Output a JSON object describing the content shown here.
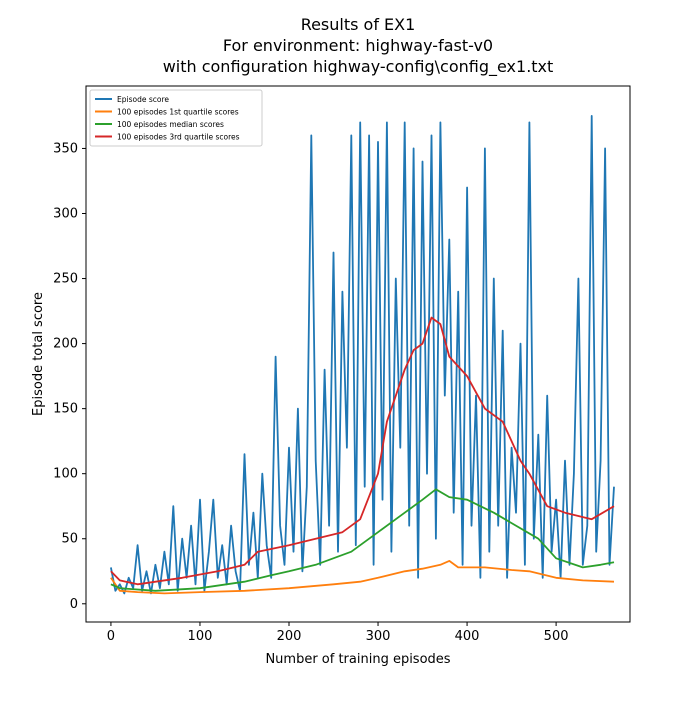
{
  "chart_data": {
    "type": "line",
    "title": [
      "Results of EX1",
      "For environment: highway-fast-v0",
      "with configuration highway-config\\config_ex1.txt"
    ],
    "x_label": "Number of training episodes",
    "y_label": "Episode total score",
    "xlim": [
      -28,
      583
    ],
    "ylim": [
      -14,
      398
    ],
    "xticks": [
      0,
      100,
      200,
      300,
      400,
      500
    ],
    "yticks": [
      0,
      50,
      100,
      150,
      200,
      250,
      300,
      350
    ],
    "grid": false,
    "legend": "upper left",
    "series": [
      {
        "name": "Episode score",
        "color": "#1f77b4",
        "x": [
          0,
          5,
          10,
          15,
          20,
          25,
          30,
          35,
          40,
          45,
          50,
          55,
          60,
          65,
          70,
          75,
          80,
          85,
          90,
          95,
          100,
          105,
          110,
          115,
          120,
          125,
          130,
          135,
          140,
          145,
          150,
          155,
          160,
          165,
          170,
          175,
          180,
          185,
          190,
          195,
          200,
          205,
          210,
          215,
          220,
          225,
          230,
          235,
          240,
          245,
          250,
          255,
          260,
          265,
          270,
          275,
          280,
          285,
          290,
          295,
          300,
          305,
          310,
          315,
          320,
          325,
          330,
          335,
          340,
          345,
          350,
          355,
          360,
          365,
          370,
          375,
          380,
          385,
          390,
          395,
          400,
          405,
          410,
          415,
          420,
          425,
          430,
          435,
          440,
          445,
          450,
          455,
          460,
          465,
          470,
          475,
          480,
          485,
          490,
          495,
          500,
          505,
          510,
          515,
          520,
          525,
          530,
          535,
          540,
          545,
          550,
          555,
          560,
          565
        ],
        "values": [
          28,
          10,
          15,
          8,
          20,
          12,
          45,
          10,
          25,
          8,
          30,
          12,
          40,
          15,
          75,
          10,
          50,
          20,
          60,
          15,
          80,
          10,
          40,
          80,
          20,
          45,
          15,
          60,
          25,
          10,
          115,
          30,
          70,
          20,
          100,
          45,
          20,
          190,
          60,
          30,
          120,
          40,
          150,
          25,
          90,
          360,
          110,
          30,
          180,
          60,
          270,
          40,
          240,
          120,
          360,
          45,
          370,
          90,
          360,
          30,
          355,
          80,
          370,
          40,
          250,
          120,
          370,
          60,
          350,
          20,
          340,
          100,
          360,
          50,
          370,
          160,
          280,
          70,
          240,
          30,
          320,
          60,
          160,
          20,
          350,
          40,
          250,
          60,
          210,
          20,
          120,
          70,
          200,
          30,
          370,
          50,
          130,
          20,
          160,
          40,
          80,
          20,
          110,
          30,
          100,
          250,
          30,
          60,
          375,
          40,
          110,
          350,
          30,
          90
        ]
      },
      {
        "name": "100 episodes 1st quartile scores",
        "color": "#ff7f0e",
        "x": [
          0,
          10,
          30,
          60,
          100,
          150,
          200,
          250,
          280,
          300,
          330,
          350,
          370,
          380,
          390,
          420,
          450,
          470,
          500,
          530,
          565
        ],
        "values": [
          20,
          10,
          9,
          8,
          9,
          10,
          12,
          15,
          17,
          20,
          25,
          27,
          30,
          33,
          28,
          28,
          26,
          25,
          20,
          18,
          17
        ]
      },
      {
        "name": "100 episodes median scores",
        "color": "#2ca02c",
        "x": [
          0,
          10,
          50,
          100,
          150,
          180,
          200,
          230,
          270,
          300,
          330,
          350,
          365,
          380,
          400,
          430,
          450,
          480,
          500,
          530,
          550,
          565
        ],
        "values": [
          15,
          12,
          10,
          12,
          17,
          22,
          25,
          30,
          40,
          55,
          70,
          80,
          88,
          82,
          80,
          70,
          62,
          50,
          35,
          28,
          30,
          32
        ]
      },
      {
        "name": "100 episodes 3rd quartile scores",
        "color": "#d62728",
        "x": [
          0,
          10,
          30,
          80,
          120,
          150,
          165,
          200,
          230,
          260,
          280,
          300,
          310,
          330,
          340,
          350,
          360,
          370,
          380,
          400,
          420,
          440,
          460,
          470,
          490,
          510,
          540,
          565
        ],
        "values": [
          25,
          18,
          15,
          20,
          25,
          30,
          40,
          45,
          50,
          55,
          65,
          100,
          140,
          180,
          195,
          200,
          220,
          215,
          190,
          175,
          150,
          140,
          110,
          100,
          75,
          70,
          65,
          75
        ]
      }
    ]
  }
}
